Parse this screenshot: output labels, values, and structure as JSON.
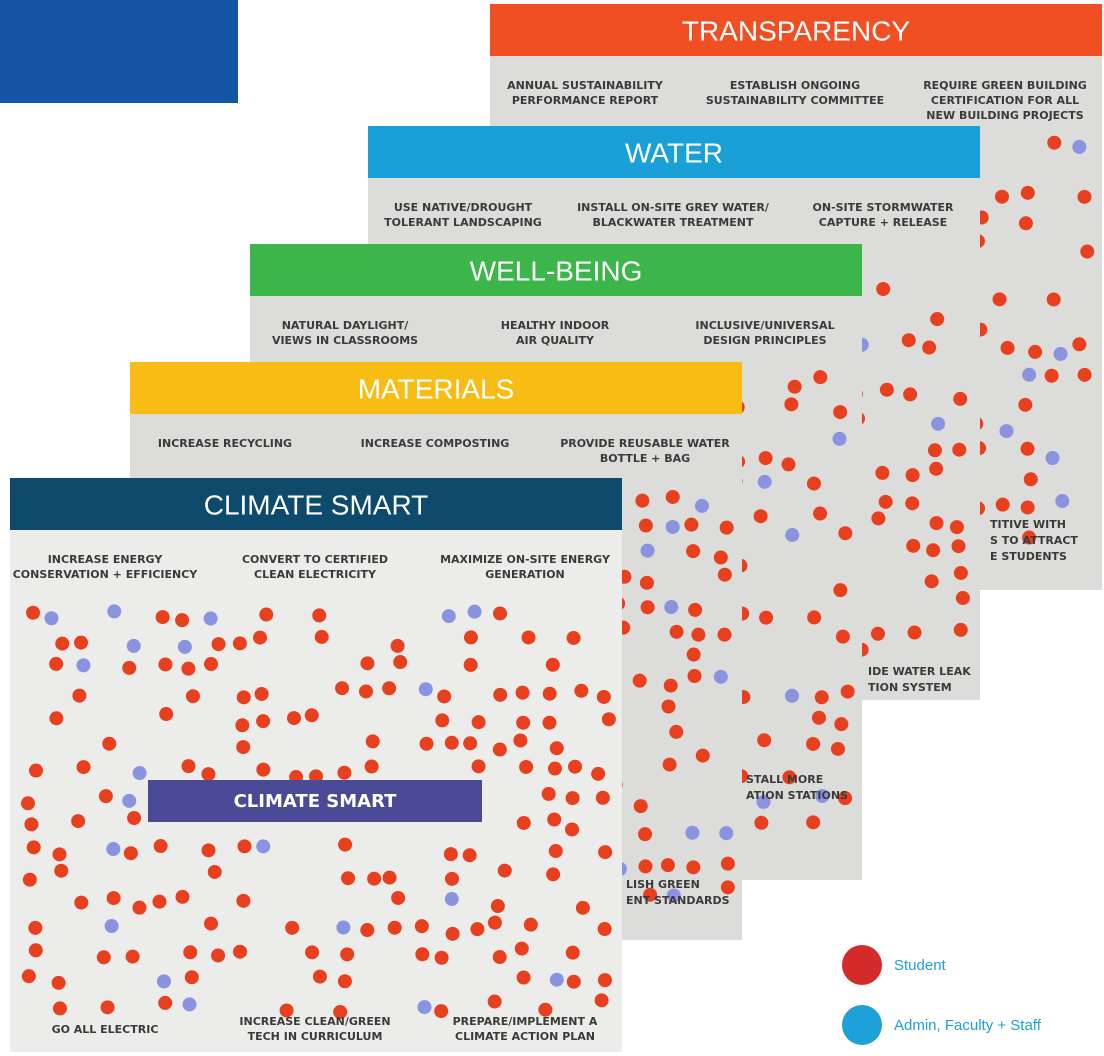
{
  "boards": [
    {
      "header": "TRANSPARENCY",
      "color": "#f04e23",
      "items": [
        [
          "ANNUAL SUSTAINABILITY",
          "PERFORMANCE REPORT"
        ],
        [
          "ESTABLISH ONGOING",
          "SUSTAINABILITY COMMITTEE"
        ],
        [
          "REQUIRE GREEN BUILDING",
          "CERTIFICATION FOR ALL",
          "NEW BUILDING PROJECTS"
        ]
      ],
      "partial": [
        "TITIVE WITH",
        "S TO ATTRACT",
        "E STUDENTS"
      ]
    },
    {
      "header": "WATER",
      "color": "#1a9fd6",
      "items": [
        [
          "USE NATIVE/DROUGHT",
          "TOLERANT LANDSCAPING"
        ],
        [
          "INSTALL ON-SITE GREY WATER/",
          "BLACKWATER TREATMENT"
        ],
        [
          "ON-SITE STORMWATER",
          "CAPTURE + RELEASE"
        ]
      ],
      "partial": [
        "IDE WATER LEAK",
        "TION SYSTEM"
      ]
    },
    {
      "header": "WELL-BEING",
      "color": "#3cb64a",
      "items": [
        [
          "NATURAL DAYLIGHT/",
          "VIEWS IN CLASSROOMS"
        ],
        [
          "HEALTHY INDOOR",
          "AIR QUALITY"
        ],
        [
          "INCLUSIVE/UNIVERSAL",
          "DESIGN PRINCIPLES"
        ]
      ],
      "partial": [
        "STALL MORE",
        "ATION STATIONS"
      ]
    },
    {
      "header": "MATERIALS",
      "color": "#f7bd14",
      "items": [
        [
          "INCREASE RECYCLING"
        ],
        [
          "INCREASE COMPOSTING"
        ],
        [
          "PROVIDE REUSABLE WATER",
          "BOTTLE + BAG"
        ]
      ],
      "partial": [
        "LISH GREEN",
        "ENT STANDARDS"
      ]
    },
    {
      "header": "CLIMATE SMART",
      "color": "#0d4a6b",
      "items": [
        [
          "INCREASE ENERGY",
          "CONSERVATION + EFFICIENCY"
        ],
        [
          "CONVERT TO CERTIFIED",
          "CLEAN ELECTRICITY"
        ],
        [
          "MAXIMIZE ON-SITE ENERGY",
          "GENERATION"
        ]
      ],
      "bottom_items": [
        [
          "GO ALL ELECTRIC"
        ],
        [
          "INCREASE CLEAN/GREEN",
          "TECH IN CURRICULUM"
        ],
        [
          "PREPARE/IMPLEMENT A",
          "CLIMATE ACTION PLAN"
        ]
      ],
      "banner": "CLIMATE SMART"
    }
  ],
  "legend": [
    {
      "label": "Student",
      "color": "#d42a2a"
    },
    {
      "label": "Admin, Faculty + Staff",
      "color": "#1ea0d8"
    }
  ]
}
